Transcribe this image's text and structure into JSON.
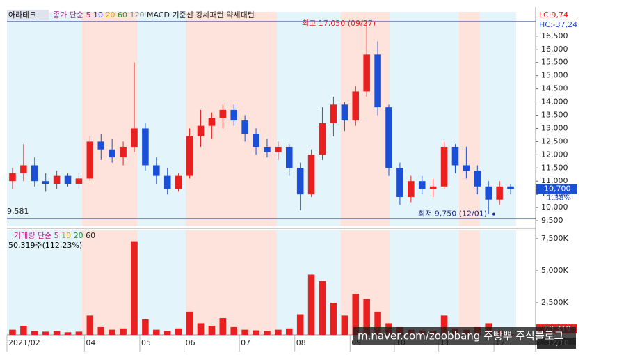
{
  "chart_data": [
    {
      "type": "candlestick",
      "title": "아라테크",
      "legend": [
        "종가 단순",
        "5",
        "10",
        "20",
        "60",
        "120",
        "MACD 기준선 강세패턴",
        "약세패턴"
      ],
      "legend_colors": [
        "#c0208a",
        "#c0208a",
        "#2030c0",
        "#e0a000",
        "#1a9a2a",
        "#888888",
        "#222222",
        "#222222"
      ],
      "lc_label": "LC:9,74",
      "hc_label": "HC:-37,24",
      "up_color": "#e8201f",
      "down_color": "#1a4fd6",
      "ylim": [
        9290,
        17420
      ],
      "yticks": [
        {
          "value": 9500,
          "label": "9,500"
        },
        {
          "value": 10000,
          "label": "10,000"
        },
        {
          "value": 10500,
          "label": "10,500"
        },
        {
          "value": 11000,
          "label": "11,000"
        },
        {
          "value": 11500,
          "label": "11,500"
        },
        {
          "value": 12000,
          "label": "12,000"
        },
        {
          "value": 12500,
          "label": "12,500"
        },
        {
          "value": 13000,
          "label": "13,000"
        },
        {
          "value": 13500,
          "label": "13,500"
        },
        {
          "value": 14000,
          "label": "14,000"
        },
        {
          "value": 14500,
          "label": "14,500"
        },
        {
          "value": 15000,
          "label": "15,000"
        },
        {
          "value": 15500,
          "label": "15,500"
        },
        {
          "value": 16000,
          "label": "16,000"
        },
        {
          "value": 16500,
          "label": "16,500"
        }
      ],
      "ohlc": [
        [
          11000,
          11500,
          10700,
          11300
        ],
        [
          11300,
          12400,
          11000,
          11600
        ],
        [
          11600,
          11900,
          10800,
          11000
        ],
        [
          11000,
          11300,
          10600,
          10900
        ],
        [
          10900,
          11400,
          10700,
          11200
        ],
        [
          11200,
          11300,
          10800,
          10900
        ],
        [
          10900,
          11300,
          10700,
          11100
        ],
        [
          11100,
          12700,
          11000,
          12500
        ],
        [
          12500,
          12800,
          11800,
          12200
        ],
        [
          12200,
          12600,
          11700,
          11900
        ],
        [
          11900,
          12500,
          11600,
          12300
        ],
        [
          12300,
          15500,
          12100,
          13000
        ],
        [
          13000,
          13200,
          11400,
          11600
        ],
        [
          11600,
          11900,
          10900,
          11200
        ],
        [
          11200,
          11500,
          10500,
          10700
        ],
        [
          10700,
          11300,
          10600,
          11200
        ],
        [
          11200,
          13000,
          11100,
          12700
        ],
        [
          12700,
          13700,
          12300,
          13100
        ],
        [
          13100,
          13600,
          12600,
          13400
        ],
        [
          13400,
          13900,
          13000,
          13700
        ],
        [
          13700,
          13900,
          13100,
          13300
        ],
        [
          13300,
          13500,
          12500,
          12800
        ],
        [
          12800,
          13000,
          12000,
          12300
        ],
        [
          12300,
          12600,
          11900,
          12100
        ],
        [
          12100,
          12500,
          11800,
          12300
        ],
        [
          12300,
          12400,
          11200,
          11500
        ],
        [
          11500,
          11700,
          9900,
          10500
        ],
        [
          10500,
          12200,
          10400,
          12000
        ],
        [
          12000,
          13800,
          11800,
          13200
        ],
        [
          13200,
          14200,
          12700,
          13900
        ],
        [
          13900,
          14000,
          12900,
          13300
        ],
        [
          13300,
          14600,
          13100,
          14400
        ],
        [
          14400,
          17050,
          14200,
          15800
        ],
        [
          15800,
          16300,
          13500,
          13800
        ],
        [
          13800,
          13900,
          11200,
          11500
        ],
        [
          11500,
          11700,
          10100,
          10400
        ],
        [
          10400,
          11200,
          10200,
          11000
        ],
        [
          11000,
          11200,
          10500,
          10700
        ],
        [
          10700,
          11100,
          10400,
          10800
        ],
        [
          10800,
          12500,
          10700,
          12300
        ],
        [
          12300,
          12400,
          11300,
          11600
        ],
        [
          11600,
          12300,
          11100,
          11400
        ],
        [
          11400,
          11600,
          10500,
          10800
        ],
        [
          10800,
          11000,
          9750,
          10300
        ],
        [
          10300,
          11000,
          10100,
          10800
        ],
        [
          10800,
          10900,
          10500,
          10700
        ]
      ],
      "ref_lines": [
        {
          "value": 17050,
          "label": "최고 17,050 (09/27)"
        },
        {
          "value": 9581,
          "label": "9,581"
        }
      ],
      "low_annotation": {
        "value": 9750,
        "label": "최저 9,750 (12/01)"
      },
      "last_price": {
        "value": 10700,
        "label": "10,700"
      },
      "change_label": "-1.38%"
    },
    {
      "type": "bar",
      "legend": [
        "거래량 단순",
        "5",
        "10",
        "20",
        "60"
      ],
      "legend_colors": [
        "#c0208a",
        "#c0208a",
        "#e0a000",
        "#1a9a2a",
        "#222222"
      ],
      "volume_label": "50,319주(112,23%)",
      "color": "#e8201f",
      "categories": [
        "2021/02",
        null,
        null,
        null,
        null,
        null,
        null,
        "04",
        null,
        null,
        null,
        null,
        "05",
        null,
        null,
        null,
        "06",
        null,
        null,
        null,
        null,
        "07",
        null,
        null,
        null,
        null,
        "08",
        null,
        null,
        null,
        null,
        "09",
        null,
        null,
        null,
        "10",
        null,
        null,
        null,
        "11",
        null,
        null,
        null,
        null,
        "12",
        null
      ],
      "current_date": "12/10",
      "ylim": [
        0,
        8040
      ],
      "yticks": [
        {
          "value": 2500,
          "label": "2,500K"
        },
        {
          "value": 5000,
          "label": "5,000K"
        },
        {
          "value": 7500,
          "label": "7,500K"
        }
      ],
      "values": [
        400,
        700,
        300,
        250,
        300,
        200,
        250,
        1500,
        600,
        400,
        500,
        7300,
        1200,
        400,
        300,
        500,
        1800,
        900,
        700,
        1300,
        600,
        400,
        350,
        300,
        400,
        500,
        1600,
        4700,
        4200,
        2500,
        1500,
        3200,
        2800,
        1800,
        900,
        600,
        400,
        350,
        300,
        1500,
        500,
        400,
        600,
        900,
        300,
        50.319
      ],
      "last_volume": {
        "value": 50.319,
        "label": "50,319"
      }
    },
    {
      "watermark": "m.naver.com/zoobbang 주빵뿌 주식블로그"
    }
  ]
}
